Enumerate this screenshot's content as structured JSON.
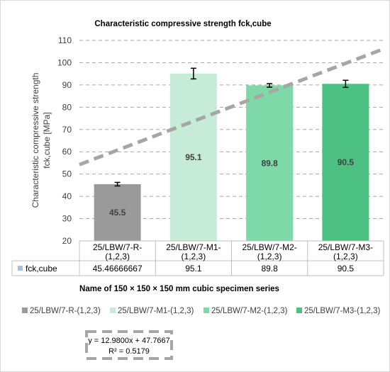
{
  "chart_data": {
    "type": "bar",
    "title": "Characteristic compressive strength fck,cube",
    "ylabel_lines": [
      "Characteristic compressive strength",
      "fck,cube [MPa]"
    ],
    "xlabel": "Name of 150 × 150 × 150 mm cubic specimen series",
    "categories": [
      {
        "line1": "25/LBW/7-R-",
        "line2": "(1,2,3)"
      },
      {
        "line1": "25/LBW/7-M1-",
        "line2": "(1,2,3)"
      },
      {
        "line1": "25/LBW/7-M2-",
        "line2": "(1,2,3)"
      },
      {
        "line1": "25/LBW/7-M3-",
        "line2": "(1,2,3)"
      }
    ],
    "values": [
      45.46666667,
      95.1,
      89.8,
      90.5
    ],
    "data_labels": [
      "45.5",
      "95.1",
      "89.8",
      "90.5"
    ],
    "error": [
      0.8,
      2.4,
      0.8,
      1.6
    ],
    "table": {
      "row_label": "fck,cube",
      "cells": [
        "45.46666667",
        "95.1",
        "89.8",
        "90.5"
      ],
      "key_color": "#9dc3e6"
    },
    "ylim": [
      20,
      110
    ],
    "yticks": [
      "20",
      "30",
      "40",
      "50",
      "60",
      "70",
      "80",
      "90",
      "100",
      "110"
    ],
    "grid": true,
    "colors": [
      "#9a9a9a",
      "#c6ecd7",
      "#7fd8a7",
      "#4dc182"
    ],
    "legend_position": "bottom",
    "legend": [
      {
        "label": "25/LBW/7-R-(1,2,3)",
        "color": "#9a9a9a"
      },
      {
        "label": "25/LBW/7-M1-(1,2,3)",
        "color": "#c6ecd7"
      },
      {
        "label": "25/LBW/7-M2-(1,2,3)",
        "color": "#7fd8a7"
      },
      {
        "label": "25/LBW/7-M3-(1,2,3)",
        "color": "#4dc182"
      }
    ],
    "trendline": {
      "slope": 12.98,
      "intercept": 47.7667,
      "equation": "y = 12.9800x + 47.7667",
      "r2": "R² = 0.5179",
      "color": "#a6a6a6"
    }
  }
}
